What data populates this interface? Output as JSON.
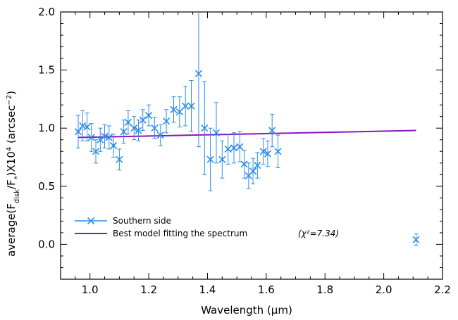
{
  "chart_data": {
    "type": "scatter",
    "xlabel": "Wavelength (μm)",
    "ylabel": "average(F_disk/F_*)X10^4 (arcsec^-2)",
    "xlim": [
      0.9,
      2.2
    ],
    "ylim": [
      -0.3,
      2.0
    ],
    "xticks": [
      1.0,
      1.2,
      1.4,
      1.6,
      1.8,
      2.0,
      2.2
    ],
    "xtick_labels": [
      "1.0",
      "1.2",
      "1.4",
      "1.6",
      "1.8",
      "2.0",
      "2.2"
    ],
    "yticks": [
      0.0,
      0.5,
      1.0,
      1.5,
      2.0
    ],
    "ytick_labels": [
      "0.0",
      "0.5",
      "1.0",
      "1.5",
      "2.0"
    ],
    "grid": false,
    "legend_position": "bottom-left",
    "colors": {
      "data": "#2a8be8",
      "model": "#8a14c8"
    },
    "series": [
      {
        "name": "Southern side",
        "marker": "x",
        "points": [
          {
            "x": 0.96,
            "y": 0.97,
            "err": 0.14
          },
          {
            "x": 0.975,
            "y": 1.02,
            "err": 0.13
          },
          {
            "x": 0.99,
            "y": 1.01,
            "err": 0.12
          },
          {
            "x": 1.005,
            "y": 0.92,
            "err": 0.12
          },
          {
            "x": 1.02,
            "y": 0.8,
            "err": 0.1
          },
          {
            "x": 1.035,
            "y": 0.9,
            "err": 0.1
          },
          {
            "x": 1.05,
            "y": 0.93,
            "err": 0.1
          },
          {
            "x": 1.065,
            "y": 0.92,
            "err": 0.1
          },
          {
            "x": 1.08,
            "y": 0.85,
            "err": 0.1
          },
          {
            "x": 1.1,
            "y": 0.73,
            "err": 0.09
          },
          {
            "x": 1.115,
            "y": 0.97,
            "err": 0.1
          },
          {
            "x": 1.13,
            "y": 1.05,
            "err": 0.1
          },
          {
            "x": 1.15,
            "y": 1.0,
            "err": 0.1
          },
          {
            "x": 1.165,
            "y": 0.98,
            "err": 0.09
          },
          {
            "x": 1.18,
            "y": 1.07,
            "err": 0.09
          },
          {
            "x": 1.2,
            "y": 1.11,
            "err": 0.09
          },
          {
            "x": 1.22,
            "y": 1.0,
            "err": 0.09
          },
          {
            "x": 1.24,
            "y": 0.94,
            "err": 0.09
          },
          {
            "x": 1.26,
            "y": 1.06,
            "err": 0.1
          },
          {
            "x": 1.285,
            "y": 1.16,
            "err": 0.11
          },
          {
            "x": 1.305,
            "y": 1.14,
            "err": 0.13
          },
          {
            "x": 1.325,
            "y": 1.19,
            "err": 0.17
          },
          {
            "x": 1.345,
            "y": 1.19,
            "err": 0.22
          },
          {
            "x": 1.37,
            "y": 1.47,
            "err": 0.63
          },
          {
            "x": 1.39,
            "y": 1.0,
            "err": 0.4
          },
          {
            "x": 1.41,
            "y": 0.73,
            "err": 0.27
          },
          {
            "x": 1.43,
            "y": 0.96,
            "err": 0.26
          },
          {
            "x": 1.45,
            "y": 0.73,
            "err": 0.16
          },
          {
            "x": 1.47,
            "y": 0.82,
            "err": 0.13
          },
          {
            "x": 1.49,
            "y": 0.83,
            "err": 0.13
          },
          {
            "x": 1.51,
            "y": 0.84,
            "err": 0.13
          },
          {
            "x": 1.525,
            "y": 0.69,
            "err": 0.12
          },
          {
            "x": 1.54,
            "y": 0.59,
            "err": 0.11
          },
          {
            "x": 1.555,
            "y": 0.63,
            "err": 0.11
          },
          {
            "x": 1.57,
            "y": 0.68,
            "err": 0.11
          },
          {
            "x": 1.59,
            "y": 0.8,
            "err": 0.11
          },
          {
            "x": 1.605,
            "y": 0.78,
            "err": 0.11
          },
          {
            "x": 1.62,
            "y": 0.98,
            "err": 0.14
          },
          {
            "x": 1.64,
            "y": 0.8,
            "err": 0.14
          },
          {
            "x": 2.11,
            "y": 0.04,
            "err": 0.05
          }
        ]
      },
      {
        "name": "Best model fitting the spectrum",
        "type": "line",
        "x": [
          0.96,
          2.11
        ],
        "y": [
          0.92,
          0.98
        ]
      }
    ],
    "annotation": "(χ²=7.34)"
  }
}
